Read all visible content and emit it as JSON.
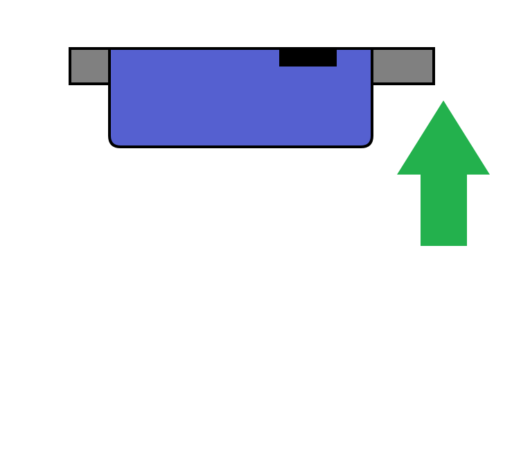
{
  "diagram": {
    "colors": {
      "background": "#ffffff",
      "bracket_fill": "#808080",
      "body_fill": "#5560d0",
      "notch_fill": "#000000",
      "outline": "#000000",
      "arrow_fill": "#23b14d"
    },
    "parts": [
      {
        "name": "left-bracket",
        "shape": "rectangle"
      },
      {
        "name": "right-bracket",
        "shape": "rectangle"
      },
      {
        "name": "tray-body",
        "shape": "rounded-bottom-rectangle"
      },
      {
        "name": "top-notch",
        "shape": "rectangle"
      },
      {
        "name": "up-arrow",
        "shape": "arrow",
        "direction": "up"
      }
    ]
  }
}
